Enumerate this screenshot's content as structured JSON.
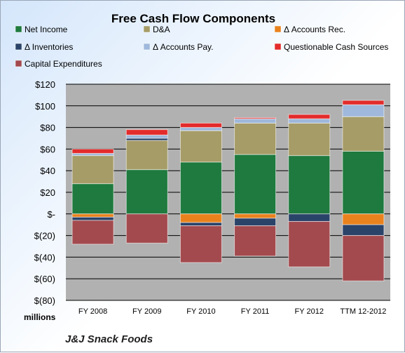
{
  "chart_data": {
    "type": "bar",
    "stacked": true,
    "title": "Free Cash Flow Components",
    "categories": [
      "FY 2008",
      "FY 2009",
      "FY 2010",
      "FY 2011",
      "FY 2012",
      "TTM 12-2012"
    ],
    "series": [
      {
        "name": "Net Income",
        "color": "#1e7a3e",
        "values": [
          28,
          41,
          48,
          55,
          54,
          58
        ]
      },
      {
        "name": "D&A",
        "color": "#a69c67",
        "values": [
          26,
          27,
          29,
          29,
          30,
          32
        ]
      },
      {
        "name": "Δ Accounts Rec.",
        "color": "#e9821d",
        "values": [
          -3,
          0,
          -8,
          -4,
          0,
          -10
        ]
      },
      {
        "name": "Δ Inventories",
        "color": "#2a4369",
        "values": [
          -3,
          2,
          -3,
          -7,
          -7,
          -10
        ]
      },
      {
        "name": "Δ Accounts Pay.",
        "color": "#9fb8db",
        "values": [
          2,
          3,
          3,
          4,
          4,
          11
        ]
      },
      {
        "name": "Questionable Cash Sources",
        "color": "#e32b2b",
        "values": [
          4,
          5,
          4,
          1,
          4,
          4
        ]
      },
      {
        "name": "Capital Expenditures",
        "color": "#a34a4e",
        "values": [
          -22,
          -27,
          -34,
          -28,
          -42,
          -42
        ]
      }
    ],
    "ylim": [
      -80,
      120
    ],
    "yticks": [
      120,
      100,
      80,
      60,
      40,
      20,
      0,
      -20,
      -40,
      -60,
      -80
    ],
    "ytick_labels": [
      "$120",
      "$100",
      "$80",
      "$60",
      "$40",
      "$20",
      "$-",
      "$(20)",
      "$(40)",
      "$(60)",
      "$(80)"
    ],
    "ylabel": "millions",
    "grid": true,
    "legend_placement": "top"
  },
  "footer": {
    "company": "J&J Snack Foods"
  }
}
